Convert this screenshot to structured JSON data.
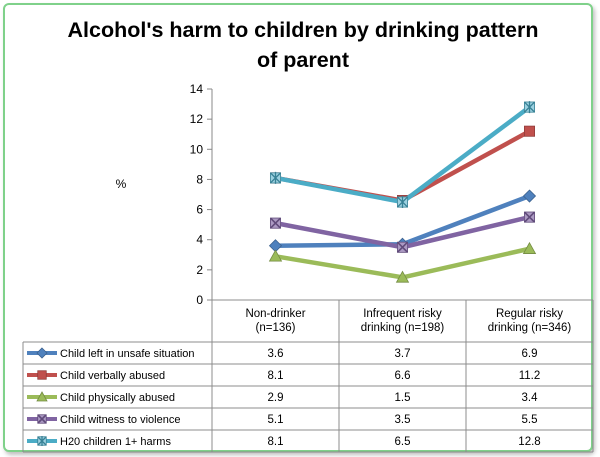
{
  "chart_data": {
    "type": "line",
    "title_lines": [
      "Alcohol's harm to children by drinking pattern",
      "of parent"
    ],
    "ylabel": "%",
    "ylim": [
      0,
      14
    ],
    "yticks": [
      0,
      2,
      4,
      6,
      8,
      10,
      12,
      14
    ],
    "categories": [
      [
        "Non-drinker",
        "(n=136)"
      ],
      [
        "Infrequent risky",
        "drinking (n=198)"
      ],
      [
        "Regular risky",
        "drinking (n=346)"
      ]
    ],
    "series": [
      {
        "name": "Child left in unsafe situation",
        "values": [
          3.6,
          3.7,
          6.9
        ],
        "color": "#4f81bd",
        "marker": "diamond",
        "labels": [
          "3.6",
          "3.7",
          "6.9"
        ]
      },
      {
        "name": "Child verbally abused",
        "values": [
          8.1,
          6.6,
          11.2
        ],
        "color": "#c0504d",
        "marker": "square",
        "labels": [
          "8.1",
          "6.6",
          "11.2"
        ]
      },
      {
        "name": "Child physically  abused",
        "values": [
          2.9,
          1.5,
          3.4
        ],
        "color": "#9bbb59",
        "marker": "triangle",
        "labels": [
          "2.9",
          "1.5",
          "3.4"
        ]
      },
      {
        "name": "Child witness to violence",
        "values": [
          5.1,
          3.5,
          5.5
        ],
        "color": "#8064a2",
        "marker": "x",
        "labels": [
          "5.1",
          "3.5",
          "5.5"
        ]
      },
      {
        "name": "H20 children 1+ harms",
        "values": [
          8.1,
          6.5,
          12.8
        ],
        "color": "#4bacc6",
        "marker": "star",
        "labels": [
          "8.1",
          "6.5",
          "12.8"
        ]
      }
    ],
    "grid": false,
    "legend": "data-table"
  }
}
